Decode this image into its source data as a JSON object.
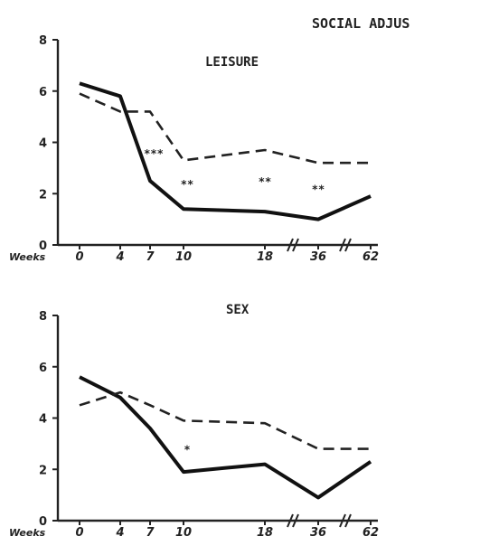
{
  "figure_title": "SOCIAL ADJUS",
  "chart_data": [
    {
      "type": "line",
      "title": "LEISURE",
      "xlabel": "Weeks",
      "ylabel": "",
      "ylim": [
        0,
        8
      ],
      "yticks": [
        "0",
        "2",
        "4",
        "6",
        "8"
      ],
      "categories": [
        "0",
        "4",
        "7",
        "10",
        "18",
        "36",
        "62"
      ],
      "series": [
        {
          "style": "solid",
          "values": [
            6.3,
            5.8,
            2.5,
            1.4,
            1.3,
            1.0,
            1.9
          ]
        },
        {
          "style": "dashed",
          "values": [
            5.9,
            5.2,
            5.2,
            3.3,
            3.7,
            3.2,
            3.2
          ]
        }
      ],
      "significance": [
        {
          "category": "7",
          "value": 3.6,
          "text": "***"
        },
        {
          "category": "10",
          "value": 2.4,
          "text": "**"
        },
        {
          "category": "18",
          "value": 2.5,
          "text": "**"
        },
        {
          "category": "36",
          "value": 2.2,
          "text": "**"
        }
      ],
      "grid": false
    },
    {
      "type": "line",
      "title": "SEX",
      "xlabel": "Weeks",
      "ylabel": "",
      "ylim": [
        0,
        8
      ],
      "yticks": [
        "0",
        "2",
        "4",
        "6",
        "8"
      ],
      "categories": [
        "0",
        "4",
        "7",
        "10",
        "18",
        "36",
        "62"
      ],
      "series": [
        {
          "style": "solid",
          "values": [
            5.6,
            4.8,
            3.6,
            1.9,
            2.2,
            0.9,
            2.3
          ]
        },
        {
          "style": "dashed",
          "values": [
            4.5,
            5.0,
            4.5,
            3.9,
            3.8,
            2.8,
            2.8
          ]
        }
      ],
      "significance": [
        {
          "category": "10",
          "value": 2.8,
          "text": "*"
        }
      ],
      "grid": false
    }
  ]
}
